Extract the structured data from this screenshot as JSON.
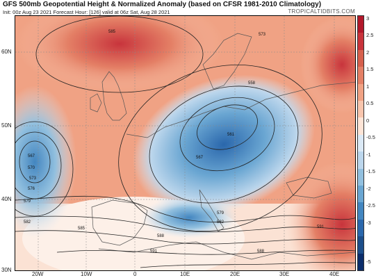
{
  "header": {
    "title": "GFS 500mb Geopotential Height & Normalized Anomaly (based on CFSR 1981-2010 Climatology)",
    "subtitle": "Init: 00z Aug 23 2021   Forecast Hour: [126]   valid at 06z Sat, Aug 28 2021",
    "brand": "TROPICALTIDBITS.COM"
  },
  "axes": {
    "lat_labels": [
      "60N",
      "50N",
      "40N",
      "30N"
    ],
    "lon_labels": [
      "20W",
      "10W",
      "0",
      "10E",
      "20E",
      "30E",
      "40E"
    ]
  },
  "contour_labels": [
    "585",
    "573",
    "567",
    "570",
    "573",
    "576",
    "579",
    "582",
    "585",
    "561",
    "558",
    "567",
    "579",
    "582",
    "588",
    "591",
    "591",
    "588"
  ],
  "colorbar": {
    "ticks": [
      "3",
      "2.5",
      "2",
      "1.5",
      "1",
      "0.5",
      "0",
      "-0.5",
      "-1",
      "-1.5",
      "-2",
      "-2.5",
      "-3",
      "-5"
    ],
    "colors": [
      "#b2182b",
      "#c8343c",
      "#d6604d",
      "#e48066",
      "#f0a284",
      "#f8c5ad",
      "#fde4d6",
      "#dbe9f5",
      "#bcd6ec",
      "#92c0df",
      "#6aa6d2",
      "#4386c0",
      "#2a67ac",
      "#1c4e8a",
      "#0b2d6b"
    ]
  },
  "legend": {
    "colors": {
      "positive": "#c8343c",
      "negative": "#2a67ac",
      "neutral": "#f7f7f7"
    }
  }
}
